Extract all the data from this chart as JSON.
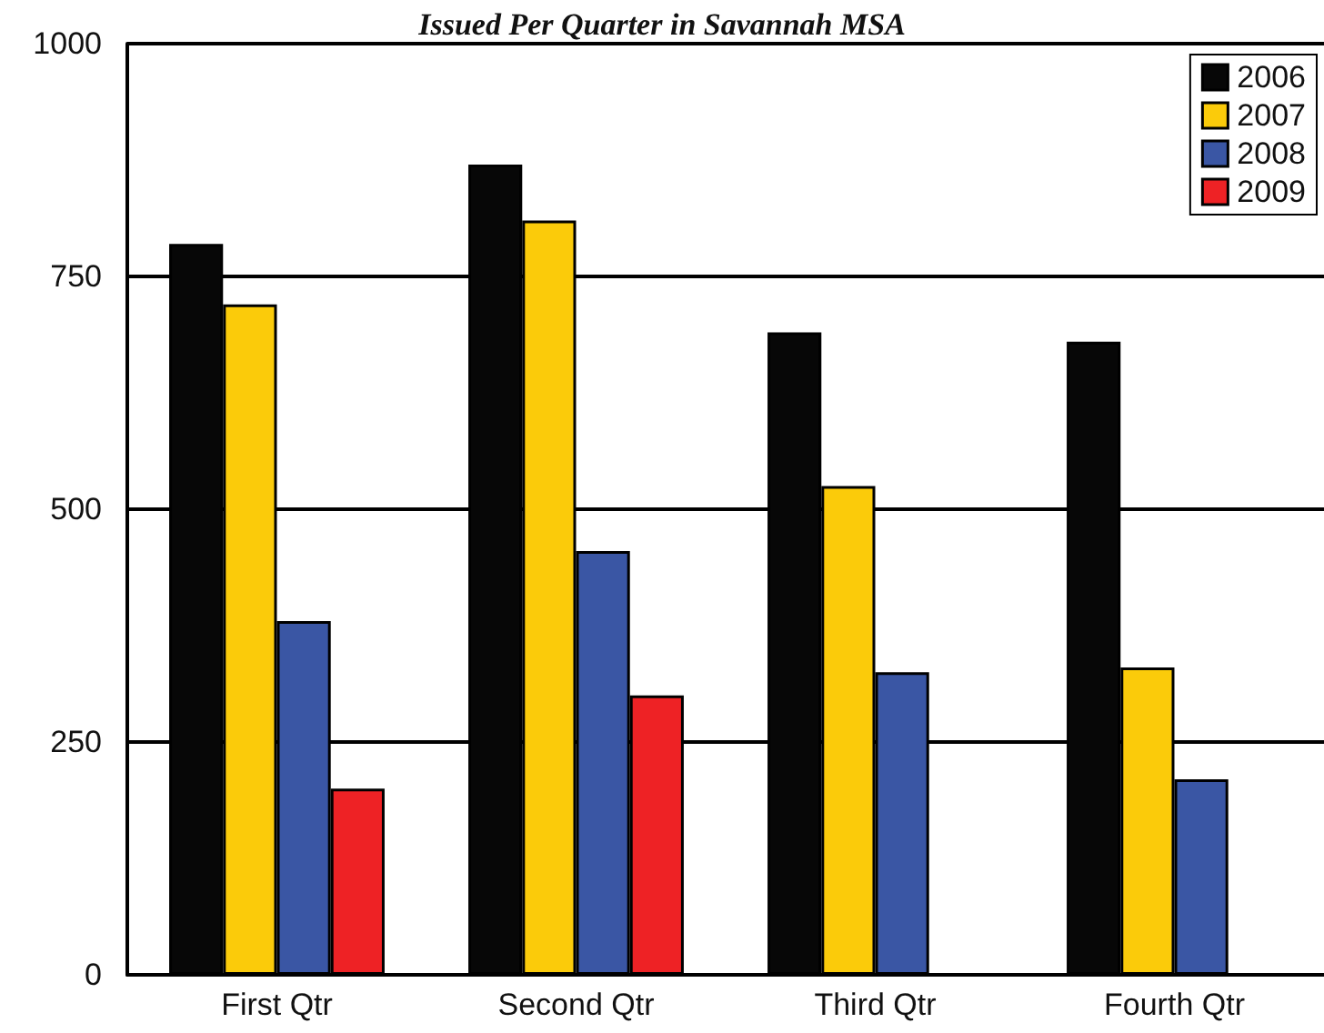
{
  "chart_data": {
    "type": "bar",
    "title": "Issued Per Quarter in Savannah MSA",
    "categories": [
      "First Qtr",
      "Second Qtr",
      "Third Qtr",
      "Fourth Qtr"
    ],
    "series": [
      {
        "name": "2006",
        "color": "#070707",
        "values": [
          785,
          870,
          690,
          680
        ]
      },
      {
        "name": "2007",
        "color": "#fbcb0a",
        "values": [
          720,
          810,
          525,
          330
        ]
      },
      {
        "name": "2008",
        "color": "#3a56a4",
        "values": [
          380,
          455,
          325,
          210
        ]
      },
      {
        "name": "2009",
        "color": "#ee2225",
        "values": [
          200,
          300,
          null,
          null
        ]
      }
    ],
    "ylim": [
      0,
      1000
    ],
    "yticks": [
      0,
      250,
      500,
      750,
      1000
    ],
    "grid": "y",
    "legend": "top right"
  }
}
